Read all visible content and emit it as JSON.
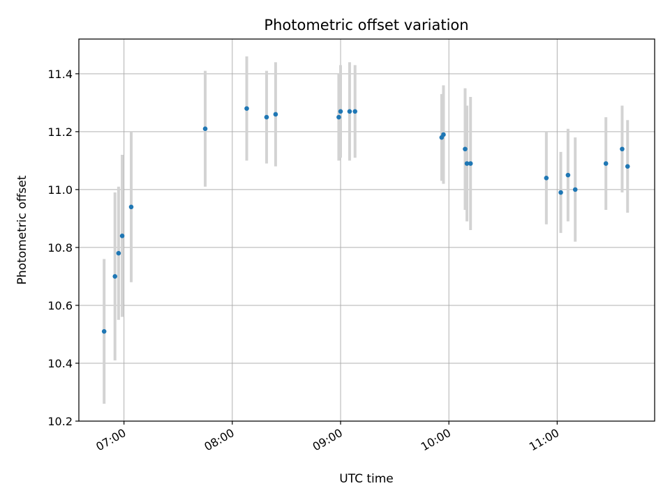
{
  "chart_data": {
    "type": "scatter",
    "title": "Photometric offset variation",
    "xlabel": "UTC time",
    "ylabel": "Photometric offset",
    "xlim": [
      "06:35",
      "11:54"
    ],
    "ylim": [
      10.2,
      11.52
    ],
    "x_ticks": [
      "07:00",
      "08:00",
      "09:00",
      "10:00",
      "11:00"
    ],
    "y_ticks": [
      "10.2",
      "10.4",
      "10.6",
      "10.8",
      "11.0",
      "11.2",
      "11.4"
    ],
    "grid": true,
    "colors": {
      "point": "#1f77b4",
      "errorbar": "#d3d3d3",
      "grid": "#b0b0b0"
    },
    "series": [
      {
        "points": [
          {
            "x": "06:49",
            "y": 10.51,
            "err": 0.25
          },
          {
            "x": "06:55",
            "y": 10.7,
            "err": 0.29
          },
          {
            "x": "06:57",
            "y": 10.78,
            "err": 0.23
          },
          {
            "x": "06:59",
            "y": 10.84,
            "err": 0.28
          },
          {
            "x": "07:04",
            "y": 10.94,
            "err": 0.26
          },
          {
            "x": "07:45",
            "y": 11.21,
            "err": 0.2
          },
          {
            "x": "08:08",
            "y": 11.28,
            "err": 0.18
          },
          {
            "x": "08:19",
            "y": 11.25,
            "err": 0.16
          },
          {
            "x": "08:24",
            "y": 11.26,
            "err": 0.18
          },
          {
            "x": "08:59",
            "y": 11.25,
            "err": 0.15
          },
          {
            "x": "09:00",
            "y": 11.27,
            "err": 0.16
          },
          {
            "x": "09:05",
            "y": 11.27,
            "err": 0.17
          },
          {
            "x": "09:08",
            "y": 11.27,
            "err": 0.16
          },
          {
            "x": "09:56",
            "y": 11.18,
            "err": 0.15
          },
          {
            "x": "09:57",
            "y": 11.19,
            "err": 0.17
          },
          {
            "x": "10:09",
            "y": 11.14,
            "err": 0.21
          },
          {
            "x": "10:10",
            "y": 11.09,
            "err": 0.2
          },
          {
            "x": "10:12",
            "y": 11.09,
            "err": 0.23
          },
          {
            "x": "10:54",
            "y": 11.04,
            "err": 0.16
          },
          {
            "x": "11:02",
            "y": 10.99,
            "err": 0.14
          },
          {
            "x": "11:06",
            "y": 11.05,
            "err": 0.16
          },
          {
            "x": "11:10",
            "y": 11.0,
            "err": 0.18
          },
          {
            "x": "11:27",
            "y": 11.09,
            "err": 0.16
          },
          {
            "x": "11:36",
            "y": 11.14,
            "err": 0.15
          },
          {
            "x": "11:39",
            "y": 11.08,
            "err": 0.16
          }
        ]
      }
    ]
  }
}
